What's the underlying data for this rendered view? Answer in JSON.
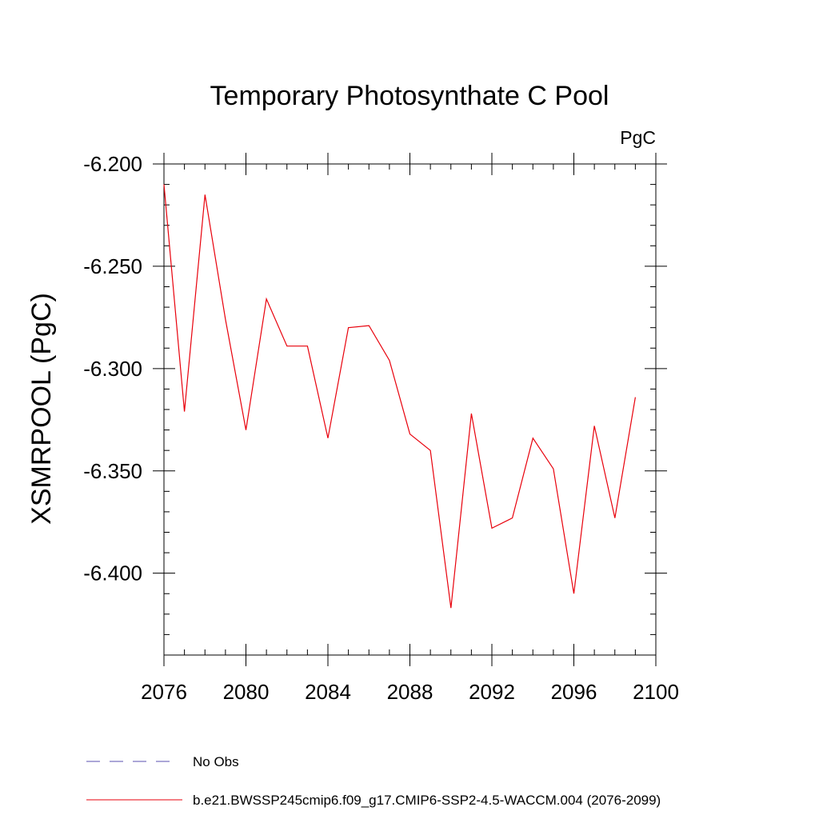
{
  "chart_data": {
    "type": "line",
    "title": "Temporary Photosynthate C Pool",
    "units_label": "PgC",
    "xlabel": "",
    "ylabel": "XSMRPOOL  (PgC)",
    "xlim": [
      2076,
      2100
    ],
    "ylim": [
      -6.44,
      -6.2
    ],
    "x_ticks": [
      2076,
      2080,
      2084,
      2088,
      2092,
      2096,
      2100
    ],
    "x_tick_labels": [
      "2076",
      "2080",
      "2084",
      "2088",
      "2092",
      "2096",
      "2100"
    ],
    "y_ticks": [
      -6.2,
      -6.25,
      -6.3,
      -6.35,
      -6.4
    ],
    "y_tick_labels": [
      "-6.200",
      "-6.250",
      "-6.300",
      "-6.350",
      "-6.400"
    ],
    "grid": false,
    "legend_position": "bottom-left",
    "series": [
      {
        "name": "b.e21.BWSSP245cmip6.f09_g17.CMIP6-SSP2-4.5-WACCM.004 (2076-2099)",
        "color": "#e8000b",
        "x": [
          2076,
          2077,
          2078,
          2079,
          2080,
          2081,
          2082,
          2083,
          2084,
          2085,
          2086,
          2087,
          2088,
          2089,
          2090,
          2091,
          2092,
          2093,
          2094,
          2095,
          2096,
          2097,
          2098,
          2099
        ],
        "y": [
          -6.21,
          -6.321,
          -6.215,
          -6.276,
          -6.33,
          -6.266,
          -6.289,
          -6.289,
          -6.334,
          -6.28,
          -6.279,
          -6.296,
          -6.332,
          -6.34,
          -6.417,
          -6.322,
          -6.378,
          -6.373,
          -6.334,
          -6.349,
          -6.41,
          -6.328,
          -6.373,
          -6.314
        ]
      }
    ],
    "legend": [
      {
        "label": "No Obs",
        "color": "#5a4fb0",
        "dash": "dashed"
      },
      {
        "label": "b.e21.BWSSP245cmip6.f09_g17.CMIP6-SSP2-4.5-WACCM.004 (2076-2099)",
        "color": "#e8000b",
        "dash": "solid"
      }
    ]
  }
}
